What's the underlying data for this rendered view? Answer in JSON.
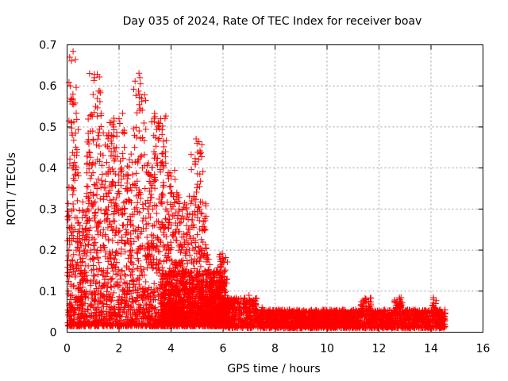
{
  "chart_data": {
    "type": "scatter",
    "title": "Day 035 of 2024, Rate Of TEC Index for receiver boav",
    "xlabel": "GPS time / hours",
    "ylabel": "ROTI / TECUs",
    "xlim": [
      0,
      16
    ],
    "ylim": [
      0,
      0.7
    ],
    "xticks": [
      0,
      2,
      4,
      6,
      8,
      10,
      12,
      14,
      16
    ],
    "yticks": [
      0,
      0.1,
      0.2,
      0.3,
      0.4,
      0.5,
      0.6,
      0.7
    ],
    "xtick_labels": [
      "0",
      "2",
      "4",
      "6",
      "8",
      "10",
      "12",
      "14",
      "16"
    ],
    "ytick_labels": [
      "0",
      "0.1",
      "0.2",
      "0.3",
      "0.4",
      "0.5",
      "0.6",
      "0.7"
    ],
    "grid": true,
    "marker": "+",
    "color": "#ff0000",
    "series": [
      {
        "name": "ROTI",
        "x": [
          0.05,
          0.1,
          0.12,
          0.15,
          0.18,
          0.2,
          0.25,
          0.3,
          0.35,
          0.4,
          0.45,
          0.5,
          0.55,
          0.6,
          0.65,
          0.7,
          0.75,
          0.8,
          0.85,
          0.9,
          0.95,
          1.0,
          1.05,
          1.1,
          1.15,
          1.2,
          1.3,
          1.4,
          1.5,
          1.6,
          1.7,
          1.8,
          1.9,
          2.0,
          2.1,
          2.2,
          2.3,
          2.4,
          2.5,
          2.6,
          2.7,
          2.8,
          2.9,
          3.0,
          3.1,
          3.2,
          3.3,
          3.4,
          3.5,
          3.6,
          3.7,
          3.8,
          3.9,
          4.0,
          4.1,
          4.2,
          4.3,
          4.4,
          4.5,
          4.6,
          4.7,
          4.8,
          4.9,
          5.0,
          5.1,
          5.2,
          5.3,
          5.4,
          5.5,
          5.6,
          5.7,
          5.8,
          5.9,
          6.0,
          6.1,
          0.1,
          0.12,
          0.3,
          0.4,
          0.9,
          1.05,
          1.1,
          2.8,
          1.9,
          2.0,
          3.6,
          3.8,
          0.2,
          0.6,
          1.2,
          1.5,
          2.2,
          2.5,
          3.0,
          3.3,
          4.0,
          4.3,
          4.6,
          5.0,
          5.3
        ],
        "y": [
          0.1,
          0.67,
          0.6,
          0.57,
          0.51,
          0.4,
          0.3,
          0.25,
          0.2,
          0.22,
          0.15,
          0.12,
          0.1,
          0.18,
          0.2,
          0.25,
          0.28,
          0.3,
          0.32,
          0.2,
          0.15,
          0.47,
          0.62,
          0.55,
          0.35,
          0.3,
          0.2,
          0.15,
          0.3,
          0.48,
          0.44,
          0.5,
          0.45,
          0.52,
          0.4,
          0.3,
          0.35,
          0.42,
          0.2,
          0.3,
          0.25,
          0.62,
          0.4,
          0.35,
          0.3,
          0.28,
          0.3,
          0.37,
          0.5,
          0.52,
          0.4,
          0.3,
          0.2,
          0.38,
          0.33,
          0.25,
          0.3,
          0.2,
          0.15,
          0.28,
          0.2,
          0.32,
          0.2,
          0.46,
          0.3,
          0.2,
          0.15,
          0.12,
          0.1,
          0.12,
          0.08,
          0.1,
          0.06,
          0.18,
          0.12,
          0.05,
          0.03,
          0.08,
          0.06,
          0.12,
          0.1,
          0.08,
          0.05,
          0.04,
          0.06,
          0.07,
          0.05,
          0.09,
          0.07,
          0.1,
          0.05,
          0.06,
          0.08,
          0.1,
          0.06,
          0.12,
          0.1,
          0.08,
          0.06,
          0.05
        ],
        "density_note": "dense low-level band continues from about 6 h to 14.5 h with values mostly 0.01–0.06 and occasional peaks near 0.08",
        "tail": {
          "x": [
            6.3,
            6.6,
            6.9,
            7.0,
            7.2,
            7.5,
            7.8,
            8.1,
            8.4,
            8.7,
            9.0,
            9.3,
            9.6,
            9.8,
            10.0,
            10.3,
            10.6,
            10.9,
            11.2,
            11.4,
            11.5,
            11.6,
            11.9,
            12.2,
            12.5,
            12.7,
            12.8,
            13.0,
            13.3,
            13.6,
            13.9,
            14.0,
            14.1,
            14.3,
            14.5
          ],
          "y": [
            0.06,
            0.08,
            0.05,
            0.09,
            0.04,
            0.06,
            0.05,
            0.04,
            0.05,
            0.04,
            0.03,
            0.05,
            0.03,
            0.04,
            0.05,
            0.03,
            0.03,
            0.03,
            0.04,
            0.07,
            0.08,
            0.05,
            0.03,
            0.04,
            0.03,
            0.06,
            0.08,
            0.05,
            0.03,
            0.04,
            0.03,
            0.05,
            0.08,
            0.04,
            0.03
          ]
        }
      }
    ]
  }
}
